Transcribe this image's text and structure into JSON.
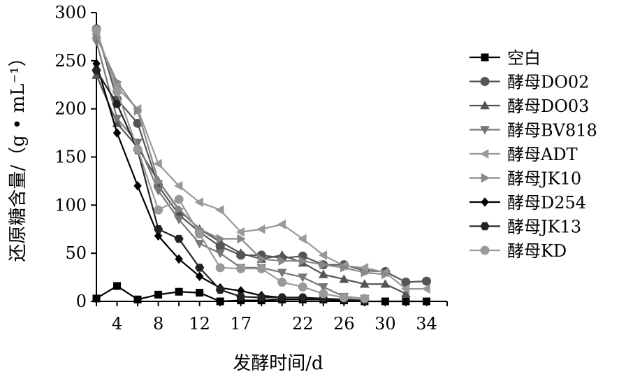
{
  "chart_data": {
    "type": "line",
    "xlabel": "发酵时间/d",
    "ylabel": "还原糖含量/（g • mL⁻¹）",
    "x_ticks": [
      "4",
      "8",
      "12",
      "17",
      "22",
      "26",
      "30",
      "34"
    ],
    "y_ticks": [
      "0",
      "50",
      "100",
      "150",
      "200",
      "250",
      "300"
    ],
    "ylim": [
      0,
      300
    ],
    "legend_position": "right",
    "x": [
      2,
      4,
      6,
      8,
      10,
      12,
      14,
      16,
      18,
      20,
      22,
      24,
      26,
      28,
      30,
      32,
      34
    ],
    "series": [
      {
        "name": "空白",
        "marker": "square",
        "color": "#000000",
        "values": [
          3,
          16,
          2,
          7,
          10,
          9,
          0,
          1,
          1,
          2,
          2,
          2,
          1,
          0,
          0,
          0,
          0
        ]
      },
      {
        "name": "酵母DO02",
        "marker": "circle",
        "color": "#555555",
        "values": [
          283,
          210,
          185,
          120,
          90,
          72,
          57,
          48,
          48,
          45,
          47,
          38,
          38,
          32,
          31,
          20,
          21
        ]
      },
      {
        "name": "酵母DO03",
        "marker": "triangle-up",
        "color": "#555555",
        "values": [
          235,
          185,
          160,
          125,
          95,
          75,
          62,
          50,
          44,
          48,
          40,
          28,
          23,
          18,
          18,
          8,
          null
        ]
      },
      {
        "name": "酵母BV818",
        "marker": "triangle-down",
        "color": "#777777",
        "values": [
          270,
          190,
          165,
          115,
          85,
          60,
          50,
          35,
          35,
          30,
          25,
          15,
          5,
          3,
          null,
          null,
          null
        ]
      },
      {
        "name": "酵母ADT",
        "marker": "triangle-left",
        "color": "#999999",
        "values": [
          278,
          222,
          200,
          143,
          120,
          103,
          95,
          72,
          75,
          80,
          65,
          48,
          37,
          35,
          30,
          13,
          13
        ]
      },
      {
        "name": "酵母JK10",
        "marker": "triangle-right",
        "color": "#888888",
        "values": [
          275,
          228,
          198,
          125,
          96,
          75,
          65,
          65,
          44,
          42,
          42,
          38,
          35,
          30,
          28,
          null,
          null
        ]
      },
      {
        "name": "酵母D254",
        "marker": "diamond",
        "color": "#000000",
        "values": [
          247,
          175,
          120,
          68,
          44,
          26,
          14,
          11,
          6,
          4,
          4,
          2,
          1,
          1,
          null,
          null,
          null
        ]
      },
      {
        "name": "酵母JK13",
        "marker": "hexagon",
        "color": "#222222",
        "values": [
          240,
          205,
          157,
          75,
          65,
          35,
          12,
          5,
          4,
          4,
          4,
          3,
          2,
          1,
          null,
          null,
          null
        ]
      },
      {
        "name": "酵母KD",
        "marker": "circle",
        "color": "#999999",
        "values": [
          282,
          218,
          158,
          95,
          106,
          70,
          35,
          34,
          34,
          20,
          15,
          8,
          4,
          3,
          null,
          null,
          null
        ]
      }
    ]
  }
}
